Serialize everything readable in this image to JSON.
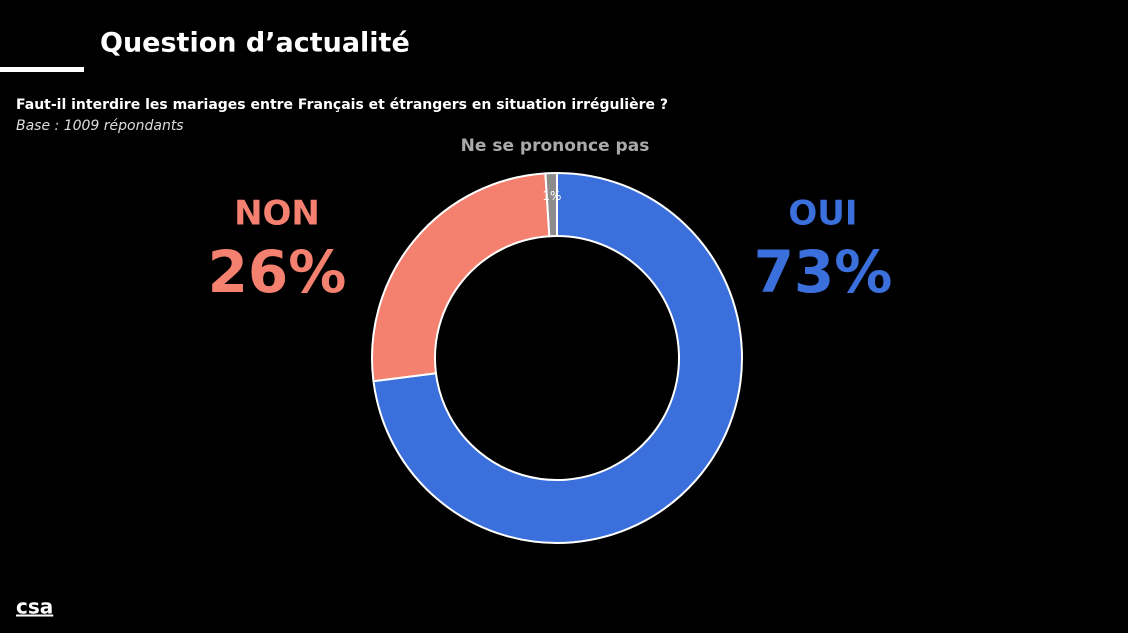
{
  "chart_data": {
    "type": "pie",
    "donut": true,
    "title": "Question d’actualité",
    "subtitle": "Faut-il interdire les mariages entre Français et étrangers en situation irrégulière ?",
    "caption": "Base : 1009 répondants",
    "categories": [
      "OUI",
      "NON",
      "Ne se prononce pas"
    ],
    "values": [
      73,
      26,
      1
    ],
    "value_labels": [
      "73%",
      "26%",
      "1%"
    ],
    "colors": [
      "#3a6fdc",
      "#f4806f",
      "#8c8c8c"
    ]
  },
  "footer": {
    "logo": "csa"
  }
}
